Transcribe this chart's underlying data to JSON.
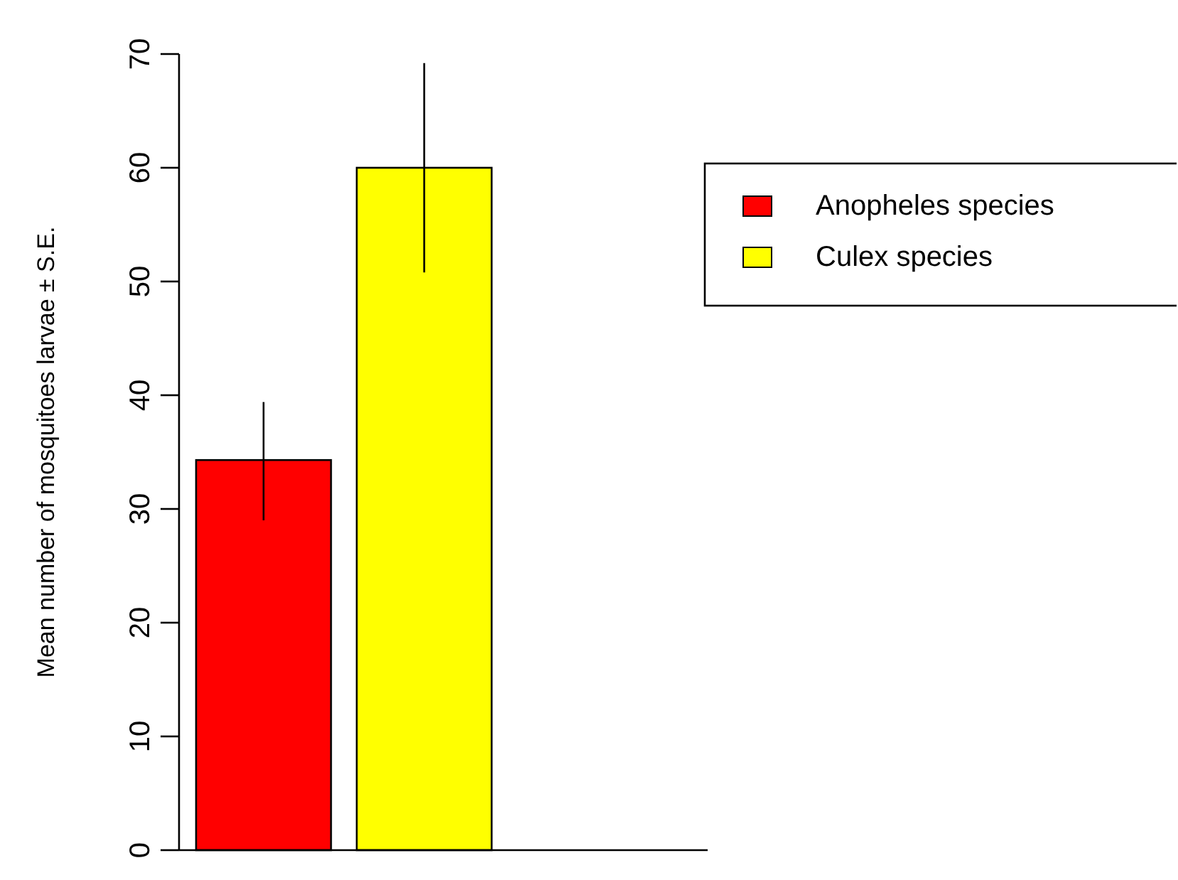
{
  "chart_data": {
    "type": "bar",
    "ylabel": "Mean number of mosquitoes larvae ± S.E.",
    "categories": [
      null,
      null
    ],
    "series": [
      {
        "name": "Anopheles species",
        "color": "#ff0000",
        "values": [
          34.3,
          null
        ],
        "errors": [
          [
            29.0,
            39.4
          ],
          null
        ]
      },
      {
        "name": "Culex species",
        "color": "#ffff00",
        "values": [
          null,
          60.0
        ],
        "errors": [
          null,
          [
            50.8,
            69.2
          ]
        ]
      }
    ],
    "ylim": [
      0,
      70
    ],
    "yticks": [
      0,
      10,
      20,
      30,
      40,
      50,
      60,
      70
    ],
    "stacked": true,
    "grid": false,
    "legend": "top right"
  }
}
